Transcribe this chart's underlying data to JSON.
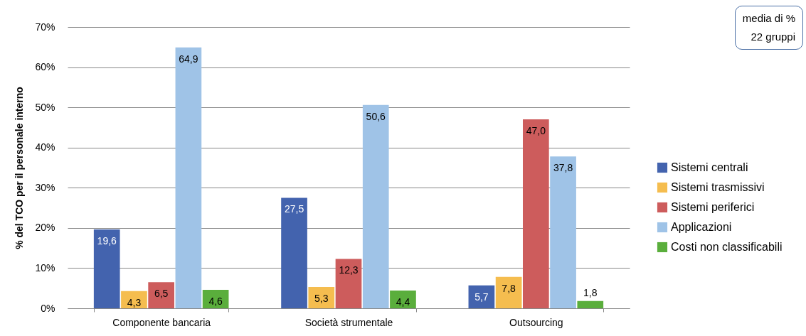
{
  "chart_data": {
    "type": "bar",
    "ylabel": "% del TCO per il personale interno",
    "categories": [
      "Componente bancaria",
      "Società strumentale",
      "Outsourcing"
    ],
    "series": [
      {
        "name": "Sistemi centrali",
        "color": "#4363ae",
        "values": [
          19.6,
          27.5,
          5.7
        ],
        "value_labels": [
          "19,6",
          "27,5",
          "5,7"
        ]
      },
      {
        "name": "Sistemi trasmissivi",
        "color": "#f5bd4f",
        "values": [
          4.3,
          5.3,
          7.8
        ],
        "value_labels": [
          "4,3",
          "5,3",
          "7,8"
        ]
      },
      {
        "name": "Sistemi periferici",
        "color": "#cd5c5c",
        "values": [
          6.5,
          12.3,
          47.0
        ],
        "value_labels": [
          "6,5",
          "12,3",
          "47,0"
        ]
      },
      {
        "name": "Applicazioni",
        "color": "#9fc3e7",
        "values": [
          64.9,
          50.6,
          37.8
        ],
        "value_labels": [
          "64,9",
          "50,6",
          "37,8"
        ]
      },
      {
        "name": "Costi non classificabili",
        "color": "#5aae3c",
        "values": [
          4.6,
          4.4,
          1.8
        ],
        "value_labels": [
          "4,6",
          "4,4",
          "1,8"
        ]
      }
    ],
    "ylim": [
      0,
      70
    ],
    "yticks": [
      {
        "value": 0,
        "label": "0%"
      },
      {
        "value": 10,
        "label": "10%"
      },
      {
        "value": 20,
        "label": "20%"
      },
      {
        "value": 30,
        "label": "30%"
      },
      {
        "value": 40,
        "label": "40%"
      },
      {
        "value": 50,
        "label": "50%"
      },
      {
        "value": 60,
        "label": "60%"
      },
      {
        "value": 70,
        "label": "70%"
      }
    ],
    "grid": "y",
    "legend": "right",
    "annotations": [
      "media di %",
      "22 gruppi"
    ]
  }
}
